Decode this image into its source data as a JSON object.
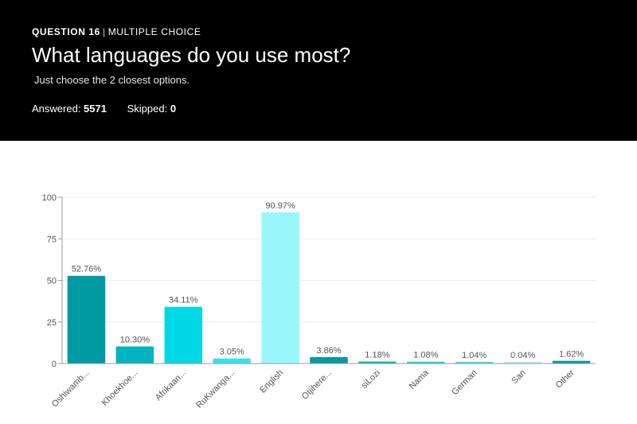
{
  "question": {
    "number": "QUESTION 16",
    "type": "MULTIPLE CHOICE",
    "title": "What languages do you use most?",
    "subtitle": "Just choose the 2 closest options.",
    "answered_label": "Answered:",
    "answered": "5571",
    "skipped_label": "Skipped:",
    "skipped": "0"
  },
  "chart_data": {
    "type": "bar",
    "categories": [
      "Oshiwamb...",
      "Khoekhoe...",
      "Afrikaan...",
      "RuKwanga...",
      "English",
      "Otjihere...",
      "siLozi",
      "Nama",
      "German",
      "San",
      "Other"
    ],
    "values": [
      52.76,
      10.3,
      34.11,
      3.05,
      90.97,
      3.86,
      1.18,
      1.08,
      1.04,
      0.04,
      1.62
    ],
    "value_labels": [
      "52.76%",
      "10.30%",
      "34.11%",
      "3.05%",
      "90.97%",
      "3.86%",
      "1.18%",
      "1.08%",
      "1.04%",
      "0.04%",
      "1.62%"
    ],
    "colors": [
      "#009aa3",
      "#00b5bf",
      "#00d8e6",
      "#33e3ee",
      "#99f7fc",
      "#009aa3",
      "#00b5bf",
      "#00d8e6",
      "#33e3ee",
      "#99f7fc",
      "#009aa3"
    ],
    "ylim": [
      0,
      100
    ],
    "yticks": [
      0,
      25,
      50,
      75,
      100
    ],
    "grid": true,
    "xlabel": "",
    "ylabel": ""
  }
}
